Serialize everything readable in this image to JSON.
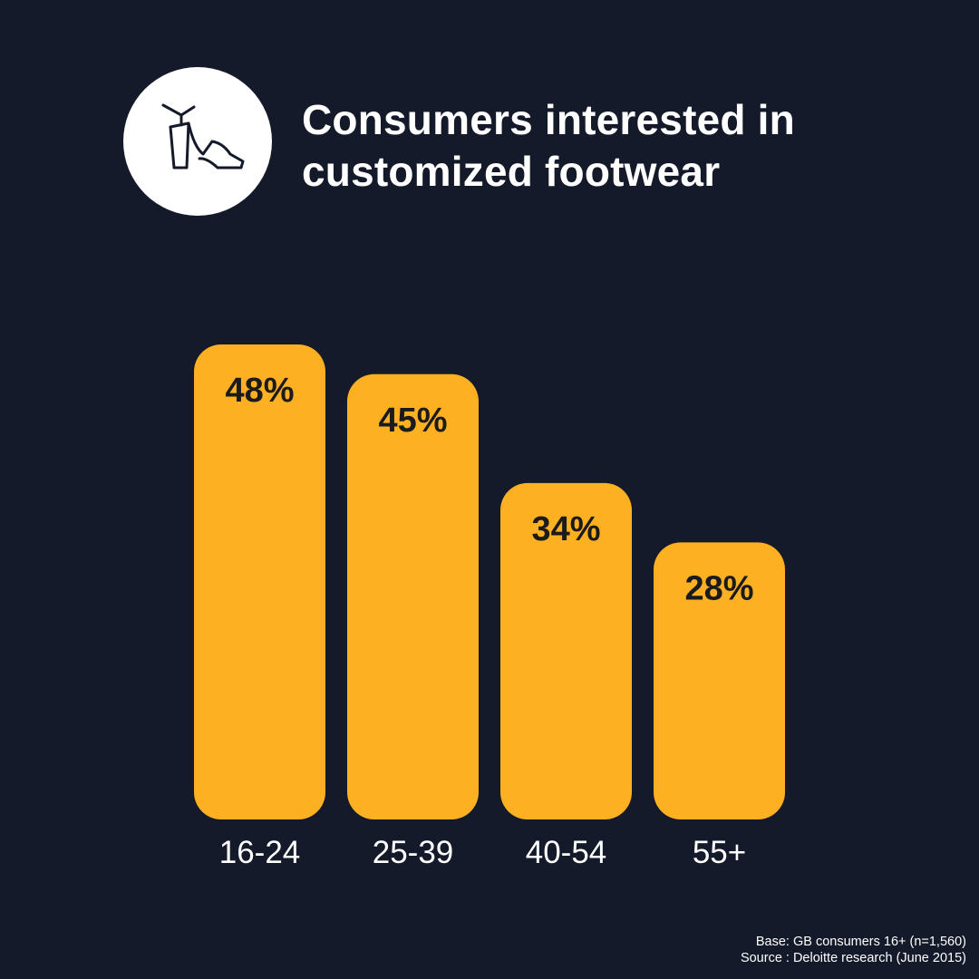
{
  "title_lines": [
    "Consumers interested in",
    "customized footwear"
  ],
  "icon": "high-heel-shoe-icon",
  "colors": {
    "background": "#141a29",
    "bar": "#fdb022",
    "bar_label": "#1b1b1b",
    "text": "#ffffff",
    "icon_bg": "#ffffff",
    "icon_stroke": "#141a29"
  },
  "chart_data": {
    "type": "bar",
    "categories": [
      "16-24",
      "25-39",
      "40-54",
      "55+"
    ],
    "values": [
      48,
      45,
      34,
      28
    ],
    "value_labels": [
      "48%",
      "45%",
      "34%",
      "28%"
    ],
    "title": "Consumers interested in customized footwear",
    "xlabel": "",
    "ylabel": "",
    "ylim": [
      0,
      48
    ],
    "grid": false,
    "legend": "none"
  },
  "footnote": {
    "base": "Base: GB consumers 16+ (n=1,560)",
    "source": "Source : Deloitte research (June 2015)"
  }
}
